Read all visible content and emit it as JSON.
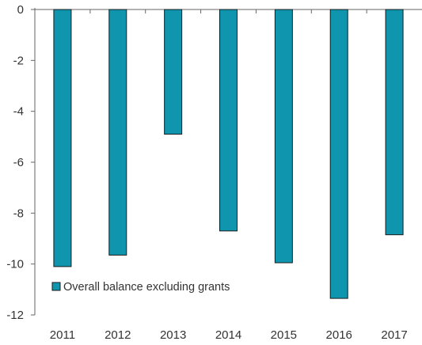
{
  "chart_data": {
    "type": "bar",
    "title": "",
    "xlabel": "",
    "ylabel": "",
    "categories": [
      "2011",
      "2012",
      "2013",
      "2014",
      "2015",
      "2016",
      "2017"
    ],
    "series": [
      {
        "name": "Overall balance excluding grants",
        "values": [
          -10.1,
          -9.65,
          -4.9,
          -8.7,
          -9.95,
          -11.35,
          -8.85
        ],
        "color": "#0f95ad"
      }
    ],
    "ylim": [
      -12,
      0
    ],
    "yticks": [
      0,
      -2,
      -4,
      -6,
      -8,
      -10,
      -12
    ],
    "grid": false,
    "legend_position": "bottom-left",
    "colors": {
      "bar_fill": "#0f95ad",
      "bar_stroke": "#1b1b1b",
      "axis": "#666666",
      "text": "#333333"
    }
  }
}
